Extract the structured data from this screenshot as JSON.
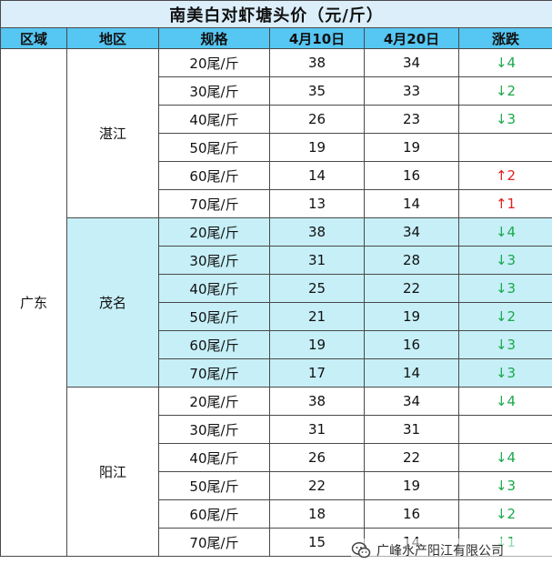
{
  "title": "南美白对虾塘头价（元/斤）",
  "headers": [
    "区域",
    "地区",
    "规格",
    "4月10日",
    "4月20日",
    "涨跌"
  ],
  "region": "广东",
  "areas": [
    {
      "name": "湛江",
      "rows": [
        {
          "spec": "20尾/斤",
          "apr10": "38",
          "apr20": "34",
          "change": "↓4",
          "dir": "down"
        },
        {
          "spec": "30尾/斤",
          "apr10": "35",
          "apr20": "33",
          "change": "↓2",
          "dir": "down"
        },
        {
          "spec": "40尾/斤",
          "apr10": "26",
          "apr20": "23",
          "change": "↓3",
          "dir": "down"
        },
        {
          "spec": "50尾/斤",
          "apr10": "19",
          "apr20": "19",
          "change": "",
          "dir": ""
        },
        {
          "spec": "60尾/斤",
          "apr10": "14",
          "apr20": "16",
          "change": "↑2",
          "dir": "up"
        },
        {
          "spec": "70尾/斤",
          "apr10": "13",
          "apr20": "14",
          "change": "↑1",
          "dir": "up"
        }
      ]
    },
    {
      "name": "茂名",
      "rows": [
        {
          "spec": "20尾/斤",
          "apr10": "38",
          "apr20": "34",
          "change": "↓4",
          "dir": "down"
        },
        {
          "spec": "30尾/斤",
          "apr10": "31",
          "apr20": "28",
          "change": "↓3",
          "dir": "down"
        },
        {
          "spec": "40尾/斤",
          "apr10": "25",
          "apr20": "22",
          "change": "↓3",
          "dir": "down"
        },
        {
          "spec": "50尾/斤",
          "apr10": "21",
          "apr20": "19",
          "change": "↓2",
          "dir": "down"
        },
        {
          "spec": "60尾/斤",
          "apr10": "19",
          "apr20": "16",
          "change": "↓3",
          "dir": "down"
        },
        {
          "spec": "70尾/斤",
          "apr10": "17",
          "apr20": "14",
          "change": "↓3",
          "dir": "down"
        }
      ]
    },
    {
      "name": "阳江",
      "rows": [
        {
          "spec": "20尾/斤",
          "apr10": "38",
          "apr20": "34",
          "change": "↓4",
          "dir": "down"
        },
        {
          "spec": "30尾/斤",
          "apr10": "31",
          "apr20": "31",
          "change": "",
          "dir": ""
        },
        {
          "spec": "40尾/斤",
          "apr10": "26",
          "apr20": "22",
          "change": "↓4",
          "dir": "down"
        },
        {
          "spec": "50尾/斤",
          "apr10": "22",
          "apr20": "19",
          "change": "↓3",
          "dir": "down"
        },
        {
          "spec": "60尾/斤",
          "apr10": "18",
          "apr20": "16",
          "change": "↓2",
          "dir": "down"
        },
        {
          "spec": "70尾/斤",
          "apr10": "15",
          "apr20": "14",
          "change": "↓1",
          "dir": "down"
        }
      ]
    }
  ],
  "watermark": "广峰水产阳江有限公司",
  "colors": {
    "down": "#1aa84b",
    "up": "#e02020",
    "header": "#56c6f2",
    "highlight": "#c6eff8"
  }
}
